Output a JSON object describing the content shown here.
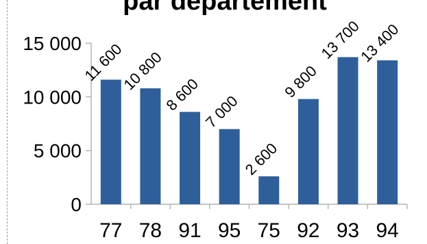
{
  "chart_data": {
    "type": "bar",
    "title": "par département",
    "categories": [
      "77",
      "78",
      "91",
      "95",
      "75",
      "92",
      "93",
      "94"
    ],
    "values": [
      11600,
      10800,
      8600,
      7000,
      2600,
      9800,
      13700,
      13400
    ],
    "data_labels": [
      "11 600",
      "10 800",
      "8 600",
      "7 000",
      "2 600",
      "9 800",
      "13 700",
      "13 400"
    ],
    "yticks": [
      "0",
      "5 000",
      "10 000",
      "15 000"
    ],
    "ylim": [
      0,
      15000
    ],
    "xlabel": "",
    "ylabel": "",
    "grid": false,
    "bar_color": "#2e5f9b",
    "axis_color": "#b3b3b3"
  }
}
